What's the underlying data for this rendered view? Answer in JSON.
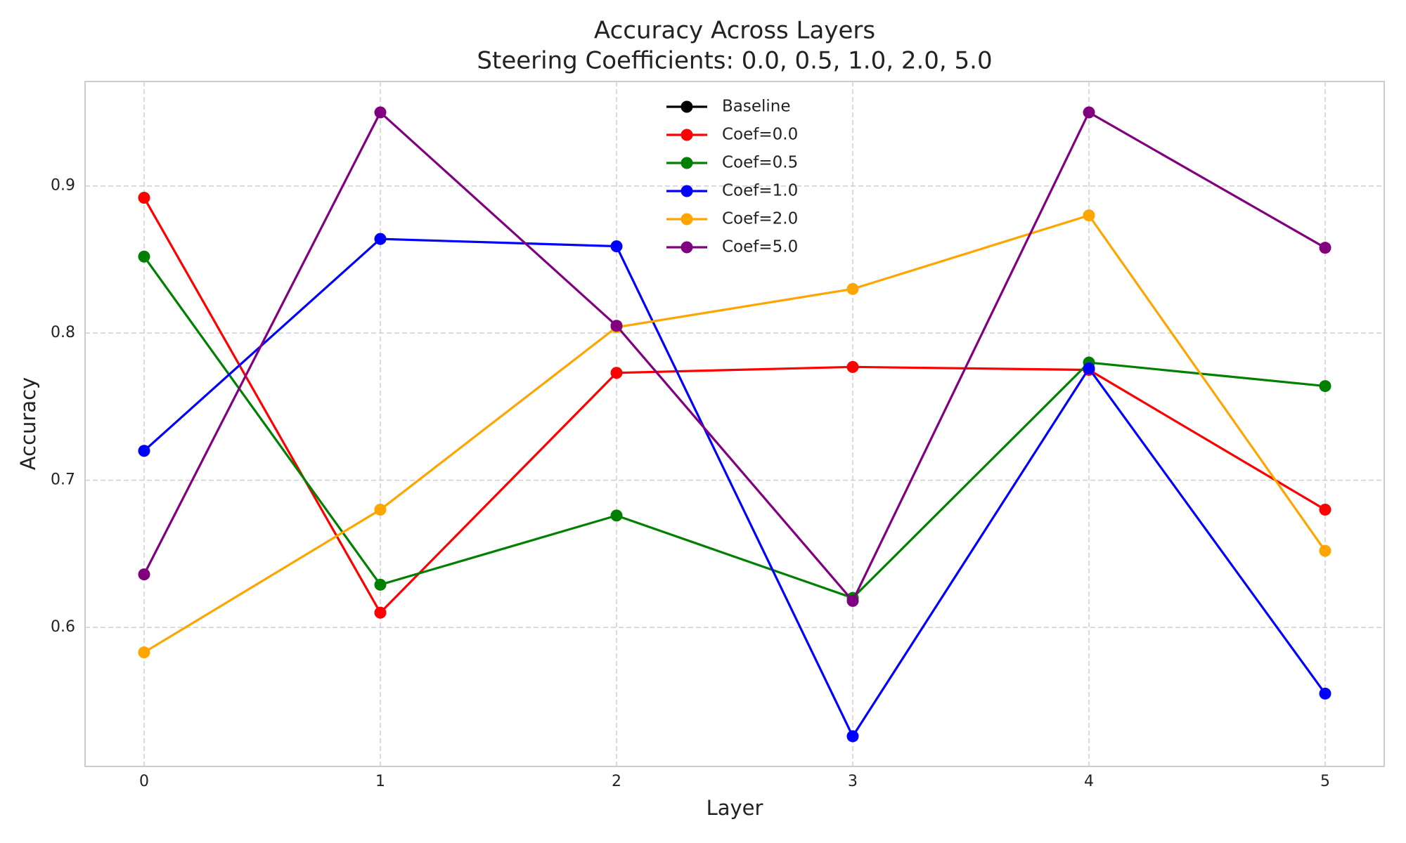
{
  "chart_data": {
    "type": "line",
    "title": "Accuracy Across Layers",
    "subtitle": "Steering Coefficients: 0.0, 0.5, 1.0, 2.0, 5.0",
    "x_label": "Layer",
    "y_label": "Accuracy",
    "x": [
      0,
      1,
      2,
      3,
      4,
      5
    ],
    "series": [
      {
        "name": "Baseline",
        "color": "#000000",
        "values": [
          null,
          null,
          null,
          null,
          null,
          null
        ]
      },
      {
        "name": "Coef=0.0",
        "color": "#ff0000",
        "values": [
          0.892,
          0.61,
          0.773,
          0.777,
          0.775,
          0.68
        ]
      },
      {
        "name": "Coef=0.5",
        "color": "#008000",
        "values": [
          0.852,
          0.629,
          0.676,
          0.62,
          0.78,
          0.764
        ]
      },
      {
        "name": "Coef=1.0",
        "color": "#0000ff",
        "values": [
          0.72,
          0.864,
          0.859,
          0.526,
          0.776,
          0.555
        ]
      },
      {
        "name": "Coef=2.0",
        "color": "#ffa500",
        "values": [
          0.583,
          0.68,
          0.804,
          0.83,
          0.88,
          0.652
        ]
      },
      {
        "name": "Coef=5.0",
        "color": "#800080",
        "values": [
          0.636,
          0.95,
          0.805,
          0.618,
          0.95,
          0.858
        ]
      }
    ],
    "xlim": [
      -0.25,
      5.25
    ],
    "xticks": [
      0,
      1,
      2,
      3,
      4,
      5
    ],
    "ylim": [
      0.5055,
      0.971
    ],
    "yticks": [
      0.6,
      0.7,
      0.8,
      0.9
    ],
    "grid": true,
    "legend": "upper center"
  }
}
